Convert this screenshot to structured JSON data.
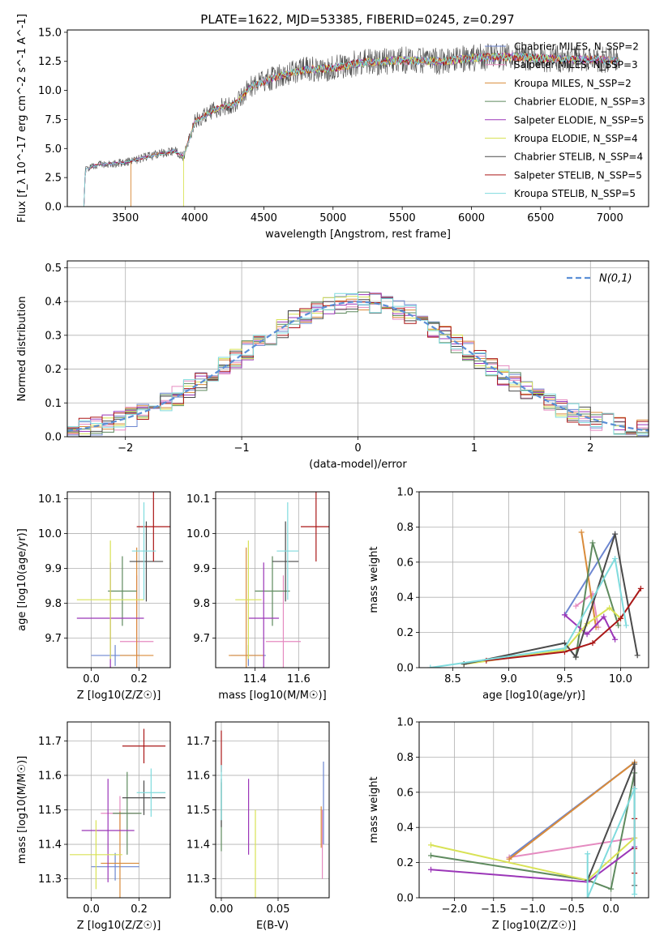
{
  "figure_title": "PLATE=1622, MJD=53385, FIBERID=0245, z=0.297",
  "series": [
    {
      "name": "Chabrier MILES, N_SSP=2",
      "color": "#6c86d0"
    },
    {
      "name": "Salpeter MILES, N_SSP=3",
      "color": "#e58ac0"
    },
    {
      "name": "Kroupa MILES, N_SSP=2",
      "color": "#d98b3a"
    },
    {
      "name": "Chabrier ELODIE, N_SSP=3",
      "color": "#5e8a5e"
    },
    {
      "name": "Salpeter ELODIE, N_SSP=5",
      "color": "#9b36b8"
    },
    {
      "name": "Kroupa ELODIE, N_SSP=4",
      "color": "#d8e255"
    },
    {
      "name": "Chabrier STELIB, N_SSP=4",
      "color": "#4a4a4a"
    },
    {
      "name": "Salpeter STELIB, N_SSP=5",
      "color": "#aa1717"
    },
    {
      "name": "Kroupa STELIB, N_SSP=5",
      "color": "#7fdbdd"
    }
  ],
  "chart_data": [
    {
      "id": "spectrum",
      "type": "line",
      "xlabel": "wavelength [Angstrom, rest frame]",
      "ylabel": "Flux [f_λ 10^-17 erg cm^-2 s^-1 A^-1]",
      "xlim": [
        3080,
        7280
      ],
      "ylim": [
        0,
        15.2
      ],
      "xticks": [
        3500,
        4000,
        4500,
        5000,
        5500,
        6000,
        6500,
        7000
      ],
      "yticks": [
        0.0,
        2.5,
        5.0,
        7.5,
        10.0,
        12.5,
        15.0
      ],
      "ytick_labels": [
        "0.0",
        "2.5",
        "5.0",
        "7.5",
        "10.0",
        "12.5",
        "15.0"
      ],
      "grid": false,
      "legend": "right",
      "continuum": [
        [
          3200,
          0
        ],
        [
          3210,
          3.2
        ],
        [
          3300,
          3.6
        ],
        [
          3500,
          3.8
        ],
        [
          3700,
          4.4
        ],
        [
          3850,
          4.8
        ],
        [
          3920,
          4.3
        ],
        [
          4000,
          7.3
        ],
        [
          4150,
          8.4
        ],
        [
          4300,
          8.9
        ],
        [
          4400,
          10.3
        ],
        [
          4600,
          11.2
        ],
        [
          4800,
          11.8
        ],
        [
          5000,
          11.9
        ],
        [
          5200,
          12.4
        ],
        [
          5500,
          12.6
        ],
        [
          5800,
          12.5
        ],
        [
          6000,
          12.8
        ],
        [
          6300,
          12.9
        ],
        [
          6600,
          12.7
        ],
        [
          7000,
          12.6
        ],
        [
          7070,
          12.5
        ]
      ]
    },
    {
      "id": "residuals",
      "type": "histogram",
      "xlabel": "(data-model)/error",
      "ylabel": "Normed distribution",
      "xlim": [
        -2.5,
        2.5
      ],
      "ylim": [
        0,
        0.52
      ],
      "xticks": [
        -2,
        -1,
        0,
        1,
        2
      ],
      "xtick_labels": [
        "−2",
        "−1",
        "0",
        "1",
        "2"
      ],
      "yticks": [
        0.0,
        0.1,
        0.2,
        0.3,
        0.4,
        0.5
      ],
      "ytick_labels": [
        "0.0",
        "0.1",
        "0.2",
        "0.3",
        "0.4",
        "0.5"
      ],
      "grid": true,
      "legend": "top-right",
      "reference": {
        "name": "N(0,1)",
        "color": "#5b8fd6",
        "mean": 0,
        "sigma": 1
      },
      "bin_width": 0.1,
      "bin_start": -2.5
    },
    {
      "id": "age-vs-Z",
      "type": "errorbar",
      "xlabel": "Z [log10(Z/Z☉)]",
      "ylabel": "age [log10(age/yr)]",
      "xlim": [
        -0.1,
        0.33
      ],
      "ylim": [
        9.615,
        10.12
      ],
      "xticks": [
        0.0,
        0.2
      ],
      "xtick_labels": [
        "0.0",
        "0.2"
      ],
      "yticks": [
        9.7,
        9.8,
        9.9,
        10.0,
        10.1
      ],
      "ytick_labels": [
        "9.7",
        "9.8",
        "9.9",
        "10.0",
        "10.1"
      ],
      "grid": true,
      "points": [
        {
          "x": 0.1,
          "xerr": 0.1,
          "y": 9.65,
          "yerr": 0.03
        },
        {
          "x": 0.19,
          "xerr": 0.07,
          "y": 9.69,
          "yerr": 0.19
        },
        {
          "x": 0.19,
          "xerr": 0.07,
          "y": 9.65,
          "yerr": 0.31
        },
        {
          "x": 0.13,
          "xerr": 0.06,
          "y": 9.835,
          "yerr": 0.1
        },
        {
          "x": 0.08,
          "xerr": 0.14,
          "y": 9.757,
          "yerr": 0.16
        },
        {
          "x": 0.08,
          "xerr": 0.14,
          "y": 9.81,
          "yerr": 0.17
        },
        {
          "x": 0.23,
          "xerr": 0.07,
          "y": 9.92,
          "yerr": 0.115
        },
        {
          "x": 0.26,
          "xerr": 0.07,
          "y": 10.02,
          "yerr": 0.1
        },
        {
          "x": 0.22,
          "xerr": 0.05,
          "y": 9.95,
          "yerr": 0.14
        }
      ]
    },
    {
      "id": "age-vs-mass",
      "type": "errorbar",
      "xlabel": "mass [log10(M/M☉)]",
      "ylabel": "",
      "xlim": [
        11.22,
        11.74
      ],
      "ylim": [
        9.615,
        10.12
      ],
      "xticks": [
        11.4,
        11.6
      ],
      "xtick_labels": [
        "11.4",
        "11.6"
      ],
      "yticks": [
        9.7,
        9.8,
        9.9,
        10.0,
        10.1
      ],
      "ytick_labels": [
        "9.7",
        "9.8",
        "9.9",
        "10.0",
        "10.1"
      ],
      "grid": true,
      "points": [
        {
          "x": 11.37,
          "xerr": 0.08,
          "y": 9.65,
          "yerr": 0.03
        },
        {
          "x": 11.53,
          "xerr": 0.08,
          "y": 9.69,
          "yerr": 0.19
        },
        {
          "x": 11.36,
          "xerr": 0.08,
          "y": 9.65,
          "yerr": 0.31
        },
        {
          "x": 11.48,
          "xerr": 0.08,
          "y": 9.835,
          "yerr": 0.1
        },
        {
          "x": 11.44,
          "xerr": 0.07,
          "y": 9.757,
          "yerr": 0.16
        },
        {
          "x": 11.37,
          "xerr": 0.06,
          "y": 9.81,
          "yerr": 0.17
        },
        {
          "x": 11.54,
          "xerr": 0.06,
          "y": 9.92,
          "yerr": 0.115
        },
        {
          "x": 11.68,
          "xerr": 0.07,
          "y": 10.02,
          "yerr": 0.1
        },
        {
          "x": 11.55,
          "xerr": 0.05,
          "y": 9.95,
          "yerr": 0.14
        }
      ]
    },
    {
      "id": "weight-vs-age",
      "type": "line",
      "xlabel": "age [log10(age/yr)]",
      "ylabel": "mass weight",
      "xlim": [
        8.2,
        10.25
      ],
      "ylim": [
        0,
        1.0
      ],
      "xticks": [
        8.5,
        9.0,
        9.5,
        10.0
      ],
      "xtick_labels": [
        "8.5",
        "9.0",
        "9.5",
        "10.0"
      ],
      "yticks": [
        0.0,
        0.2,
        0.4,
        0.6,
        0.8,
        1.0
      ],
      "ytick_labels": [
        "0.0",
        "0.2",
        "0.4",
        "0.6",
        "0.8",
        "1.0"
      ],
      "grid": true,
      "lines": [
        {
          "x": [
            9.5,
            9.95
          ],
          "y": [
            0.3,
            0.76
          ]
        },
        {
          "x": [
            9.6,
            9.75,
            9.8
          ],
          "y": [
            0.35,
            0.42,
            0.23
          ]
        },
        {
          "x": [
            9.65,
            9.78
          ],
          "y": [
            0.77,
            0.23
          ]
        },
        {
          "x": [
            9.6,
            9.75,
            9.98
          ],
          "y": [
            0.06,
            0.71,
            0.24
          ]
        },
        {
          "x": [
            9.5,
            9.7,
            9.85,
            9.95
          ],
          "y": [
            0.3,
            0.19,
            0.29,
            0.16
          ]
        },
        {
          "x": [
            8.6,
            9.5,
            9.7,
            9.9,
            10.0
          ],
          "y": [
            0.02,
            0.1,
            0.25,
            0.34,
            0.28
          ]
        },
        {
          "x": [
            8.6,
            9.5,
            9.6,
            9.95,
            10.15
          ],
          "y": [
            0.02,
            0.14,
            0.06,
            0.76,
            0.07
          ]
        },
        {
          "x": [
            8.8,
            9.5,
            9.75,
            10.0,
            10.18
          ],
          "y": [
            0.04,
            0.09,
            0.14,
            0.28,
            0.45
          ]
        },
        {
          "x": [
            8.3,
            9.5,
            9.95,
            10.05
          ],
          "y": [
            0.0,
            0.11,
            0.62,
            0.24
          ]
        }
      ]
    },
    {
      "id": "mass-vs-Z",
      "type": "errorbar",
      "xlabel": "Z [log10(Z/Z☉)]",
      "ylabel": "mass [log10(M/M☉)]",
      "xlim": [
        -0.1,
        0.33
      ],
      "ylim": [
        11.245,
        11.755
      ],
      "xticks": [
        0.0,
        0.2
      ],
      "xtick_labels": [
        "0.0",
        "0.2"
      ],
      "yticks": [
        11.3,
        11.4,
        11.5,
        11.6,
        11.7
      ],
      "ytick_labels": [
        "11.3",
        "11.4",
        "11.5",
        "11.6",
        "11.7"
      ],
      "grid": true,
      "points": [
        {
          "x": 0.1,
          "xerr": 0.1,
          "y": 11.335,
          "yerr": 0.04
        },
        {
          "x": 0.12,
          "xerr": 0.08,
          "y": 11.49,
          "yerr": 0.05
        },
        {
          "x": 0.12,
          "xerr": 0.08,
          "y": 11.345,
          "yerr": 0.15
        },
        {
          "x": 0.15,
          "xerr": 0.06,
          "y": 11.49,
          "yerr": 0.12
        },
        {
          "x": 0.07,
          "xerr": 0.11,
          "y": 11.44,
          "yerr": 0.15
        },
        {
          "x": 0.02,
          "xerr": 0.11,
          "y": 11.37,
          "yerr": 0.1
        },
        {
          "x": 0.22,
          "xerr": 0.09,
          "y": 11.535,
          "yerr": 0.05
        },
        {
          "x": 0.22,
          "xerr": 0.09,
          "y": 11.685,
          "yerr": 0.05
        },
        {
          "x": 0.25,
          "xerr": 0.06,
          "y": 11.55,
          "yerr": 0.07
        }
      ]
    },
    {
      "id": "mass-vs-EBV",
      "type": "errorbar",
      "xlabel": "E(B-V)",
      "ylabel": "",
      "xlim": [
        -0.005,
        0.095
      ],
      "ylim": [
        11.245,
        11.755
      ],
      "xticks": [
        0.0,
        0.05
      ],
      "xtick_labels": [
        "0.00",
        "0.05"
      ],
      "yticks": [
        11.3,
        11.4,
        11.5,
        11.6,
        11.7
      ],
      "ytick_labels": [
        "11.3",
        "11.4",
        "11.5",
        "11.6",
        "11.7"
      ],
      "grid": true,
      "points": [
        {
          "x": 0.09,
          "xerr": 0,
          "y": 11.52,
          "yerr": 0.12
        },
        {
          "x": 0.089,
          "xerr": 0,
          "y": 11.4,
          "yerr": 0.1
        },
        {
          "x": 0.088,
          "xerr": 0,
          "y": 11.45,
          "yerr": 0.06
        },
        {
          "x": 0.0,
          "xerr": 0,
          "y": 11.48,
          "yerr": 0.1
        },
        {
          "x": 0.024,
          "xerr": 0,
          "y": 11.48,
          "yerr": 0.11
        },
        {
          "x": 0.03,
          "xerr": 0,
          "y": 11.35,
          "yerr": 0.15
        },
        {
          "x": 0.0,
          "xerr": 0,
          "y": 11.52,
          "yerr": 0.07
        },
        {
          "x": 0.0,
          "xerr": 0,
          "y": 11.67,
          "yerr": 0.06
        },
        {
          "x": 0.0,
          "xerr": 0,
          "y": 11.55,
          "yerr": 0.08
        }
      ]
    },
    {
      "id": "weight-vs-Z",
      "type": "line",
      "xlabel": "Z [log10(Z/Z☉)]",
      "ylabel": "mass weight",
      "xlim": [
        -2.45,
        0.48
      ],
      "ylim": [
        0,
        1.0
      ],
      "xticks": [
        -2.0,
        -1.5,
        -1.0,
        -0.5,
        0.0
      ],
      "xtick_labels": [
        "−2.0",
        "−1.5",
        "−1.0",
        "−0.5",
        "0.0"
      ],
      "yticks": [
        0.0,
        0.2,
        0.4,
        0.6,
        0.8,
        1.0
      ],
      "ytick_labels": [
        "0.0",
        "0.2",
        "0.4",
        "0.6",
        "0.8",
        "1.0"
      ],
      "grid": true,
      "lines": [
        {
          "x": [
            -1.3,
            0.3
          ],
          "y": [
            0.23,
            0.77
          ]
        },
        {
          "x": [
            -1.3,
            0.3
          ],
          "y": [
            0.23,
            0.34
          ]
        },
        {
          "x": [
            -1.3,
            0.3
          ],
          "y": [
            0.22,
            0.77
          ]
        },
        {
          "x": [
            -2.3,
            -0.3,
            0.0,
            0.3
          ],
          "y": [
            0.24,
            0.1,
            0.05,
            0.71
          ]
        },
        {
          "x": [
            -2.3,
            -0.3,
            0.3
          ],
          "y": [
            0.16,
            0.09,
            0.29
          ]
        },
        {
          "x": [
            -2.3,
            -0.3,
            0.3
          ],
          "y": [
            0.3,
            0.1,
            0.34
          ]
        },
        {
          "x": [
            -0.3,
            0.3,
            0.3
          ],
          "y": [
            0.1,
            0.76,
            0.07
          ]
        },
        {
          "x": [
            0.3,
            0.3,
            0.3
          ],
          "y": [
            0.14,
            0.28,
            0.45
          ]
        },
        {
          "x": [
            -0.3,
            -0.3,
            0.3,
            0.3
          ],
          "y": [
            0.25,
            0.0,
            0.62,
            0.02
          ]
        }
      ]
    }
  ]
}
